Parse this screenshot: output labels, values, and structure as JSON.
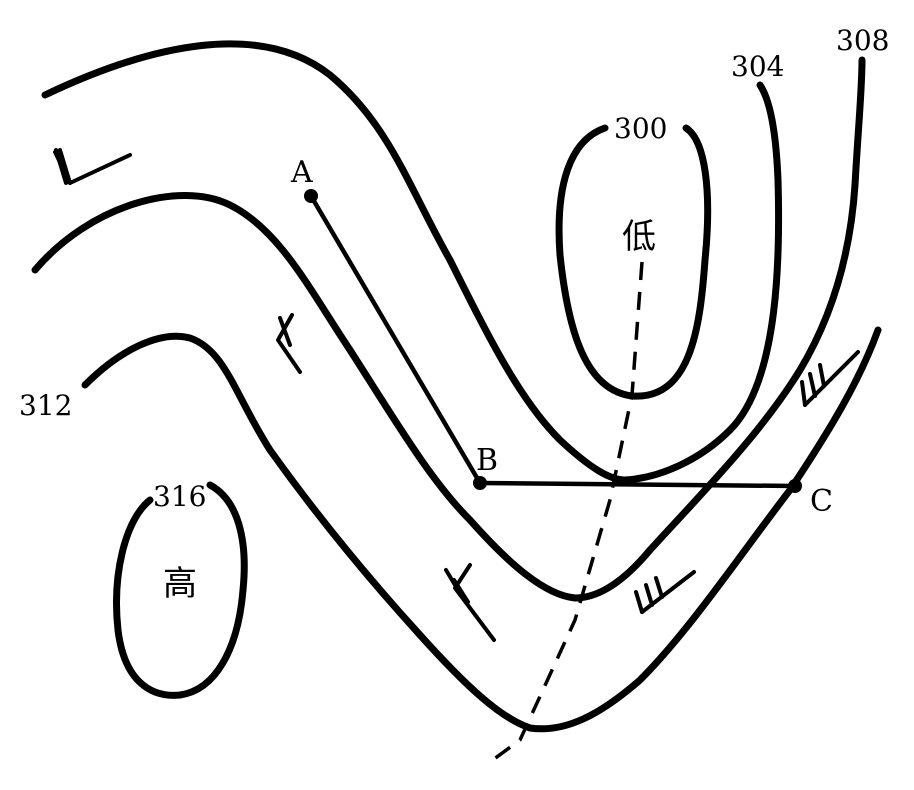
{
  "isobar_labels": {
    "l300": "300",
    "l304": "304",
    "l308": "308",
    "l312": "312",
    "l316": "316"
  },
  "points": {
    "a": "A",
    "b": "B",
    "c": "C"
  },
  "centers": {
    "low": "低",
    "high": "高"
  }
}
